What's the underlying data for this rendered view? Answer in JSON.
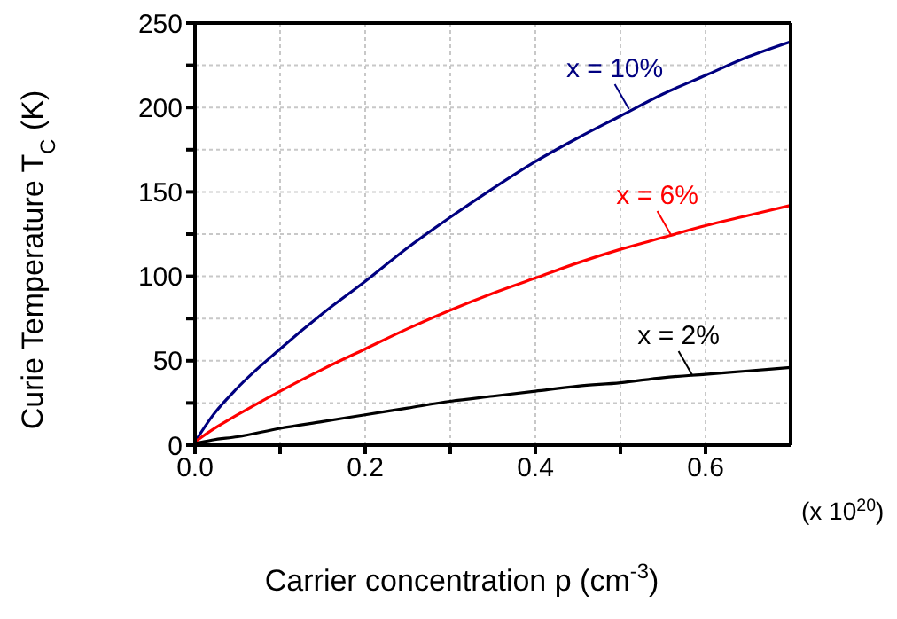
{
  "chart_data": {
    "type": "line",
    "xlabel": "Carrier concentration p (cm$^{-3}$)",
    "ylabel": "Curie Temperature T$_{C}$ (K)",
    "x": [
      0,
      0.02,
      0.05,
      0.1,
      0.15,
      0.2,
      0.25,
      0.3,
      0.35,
      0.4,
      0.45,
      0.5,
      0.55,
      0.6,
      0.65,
      0.7
    ],
    "series": [
      {
        "color": "#000080",
        "values": [
          2,
          17,
          34,
          57,
          78,
          97,
          117,
          135,
          152,
          168,
          182,
          195,
          208,
          219,
          230,
          239
        ]
      },
      {
        "color": "#ff0000",
        "values": [
          2,
          9,
          18,
          32,
          45,
          57,
          69,
          80,
          90,
          99,
          108,
          116,
          123,
          130,
          136,
          142
        ]
      },
      {
        "color": "#000000",
        "values": [
          1,
          3,
          5,
          10,
          14,
          18,
          22,
          26,
          29,
          32,
          35,
          37,
          40,
          42,
          44,
          46
        ]
      }
    ],
    "xlim": [
      0,
      0.7
    ],
    "xticks": [
      {
        "value": 0,
        "label": "0.0"
      },
      {
        "value": 0.1,
        "label": null
      },
      {
        "value": 0.2,
        "label": "0.2"
      },
      {
        "value": 0.3,
        "label": null
      },
      {
        "value": 0.4,
        "label": "0.4"
      },
      {
        "value": 0.5,
        "label": null
      },
      {
        "value": 0.6,
        "label": "0.6"
      }
    ],
    "ylim": [
      0,
      250
    ],
    "yticks": [
      0,
      {
        "value": 25,
        "label": null
      },
      50,
      {
        "value": 75,
        "label": null
      },
      100,
      {
        "value": 125,
        "label": null
      },
      150,
      {
        "value": 175,
        "label": null
      },
      200,
      {
        "value": 225,
        "label": null
      },
      250
    ],
    "grid": true,
    "marker": "none",
    "line_style": "solid",
    "annotations": [
      {
        "text": "x = 10%",
        "x": 0.51,
        "y": 199
      },
      {
        "text": "x = 6%",
        "x": 0.56,
        "y": 124
      },
      {
        "text": "x = 2%",
        "x": 0.585,
        "y": 41
      },
      "(x 10$^{20}$)"
    ]
  }
}
